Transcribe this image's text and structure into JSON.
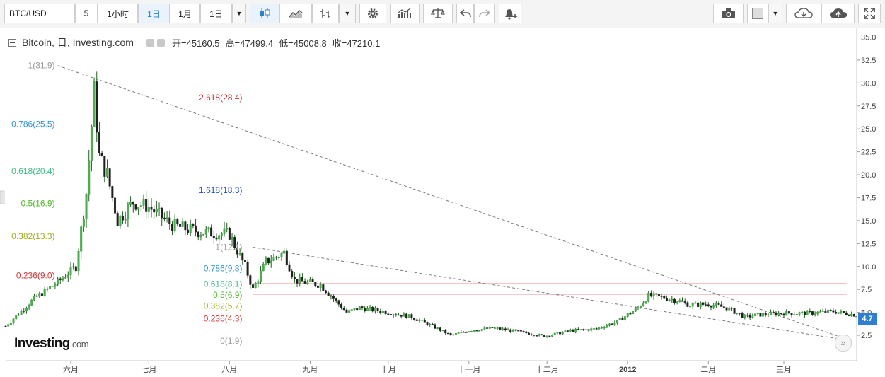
{
  "toolbar": {
    "symbol": "BTC/USD",
    "interval_value": "5",
    "buttons": [
      "1小时",
      "1日",
      "1月",
      "1日"
    ],
    "active_index": 1
  },
  "legend": {
    "title": "Bitcoin, 日, Investing.com",
    "open": "开=45160.5",
    "high": "高=47499.4",
    "low": "低=45008.8",
    "close": "收=47210.1"
  },
  "logo": {
    "brand": "Investing",
    "suffix": ".com"
  },
  "last_price_label": "4.7",
  "forward_button": "»",
  "chart_data": {
    "type": "candlestick",
    "ylim": [
      1.5,
      35.5
    ],
    "y_ticks": [
      "2.5",
      "5.0",
      "7.5",
      "10.0",
      "12.5",
      "15.0",
      "17.5",
      "20.0",
      "22.5",
      "25.0",
      "27.5",
      "30.0",
      "32.5",
      "35.0"
    ],
    "x_ticks": [
      "六月",
      "七月",
      "八月",
      "九月",
      "十月",
      "十一月",
      "十二月",
      "2012",
      "二月",
      "三月"
    ],
    "x_tick_dates": [
      "2011-06-01",
      "2011-07-01",
      "2011-08-01",
      "2011-09-01",
      "2011-10-01",
      "2011-11-01",
      "2011-12-01",
      "2012-01-01",
      "2012-02-01",
      "2012-03-01"
    ],
    "x_range": [
      "2011-05-07",
      "2012-03-29"
    ],
    "last_value": 4.7,
    "fib_sets": [
      {
        "x_start": "2011-05-27",
        "x_end": "2011-08-07",
        "levels": [
          {
            "label": "1(31.9)",
            "value": 31.9,
            "color": "#9a9a9a"
          },
          {
            "label": "0.786(25.5)",
            "value": 25.5,
            "color": "#2f94d6"
          },
          {
            "label": "0.618(20.4)",
            "value": 20.4,
            "color": "#3fbf86"
          },
          {
            "label": "0.5(16.9)",
            "value": 16.9,
            "color": "#52b82b"
          },
          {
            "label": "0.382(13.3)",
            "value": 13.3,
            "color": "#9fb320"
          },
          {
            "label": "0.236(9.0)",
            "value": 9.0,
            "color": "#d63a3a"
          }
        ],
        "fills": [
          "#dedede",
          "#cde6f4",
          "#d2f1e1",
          "#e1f5d2",
          "#f0f6d6",
          "#f8d4d4"
        ]
      },
      {
        "x_start": "2011-08-07",
        "x_end": "2012-03-27",
        "levels": [
          {
            "label": "2.618(28.4)",
            "value": 28.4,
            "color": "#c93232"
          },
          {
            "label": "1.618(18.3)",
            "value": 18.3,
            "color": "#2b4fc2"
          },
          {
            "label": "1(12.1)",
            "value": 12.1,
            "color": "#9a9a9a"
          },
          {
            "label": "0.786(9.8)",
            "value": 9.8,
            "color": "#2f94d6"
          },
          {
            "label": "0.618(8.1)",
            "value": 8.1,
            "color": "#3fbf86"
          },
          {
            "label": "0.5(6.9)",
            "value": 6.9,
            "color": "#52b82b"
          },
          {
            "label": "0.382(5.7)",
            "value": 5.7,
            "color": "#9fb320"
          },
          {
            "label": "0.236(4.3)",
            "value": 4.3,
            "color": "#d63a3a"
          },
          {
            "label": "0(1.9)",
            "value": 1.9,
            "color": "#9a9a9a"
          }
        ],
        "fills": [
          "#c6b1e8",
          "#d4bcdc",
          "#d4bfd1",
          "#bcc3dc",
          "#bcbfc9",
          "#cfd0d6",
          "#d8dbd0",
          "#d6d9c4",
          "#e3e4c2",
          "#e9dfc4",
          "#ebb0b0"
        ]
      }
    ],
    "horizontal_lines": [
      {
        "value": 8.1,
        "x_start": "2011-08-10",
        "color": "#d02020"
      },
      {
        "value": 7.0,
        "x_start": "2011-08-10",
        "color": "#d02020"
      }
    ],
    "trend_lines": [
      {
        "from": [
          "2011-05-27",
          31.9
        ],
        "to": [
          "2012-03-27",
          1.9
        ]
      },
      {
        "from": [
          "2011-08-10",
          12.1
        ],
        "to": [
          "2012-03-27",
          1.9
        ]
      }
    ],
    "anchors": [
      {
        "date": "2011-05-07",
        "price": 3.5
      },
      {
        "date": "2011-05-18",
        "price": 6.5
      },
      {
        "date": "2011-05-27",
        "price": 8.3
      },
      {
        "date": "2011-06-03",
        "price": 10.0
      },
      {
        "date": "2011-06-07",
        "price": 18.0
      },
      {
        "date": "2011-06-10",
        "price": 29.0
      },
      {
        "date": "2011-06-12",
        "price": 22.0
      },
      {
        "date": "2011-06-15",
        "price": 20.0
      },
      {
        "date": "2011-06-19",
        "price": 15.0
      },
      {
        "date": "2011-06-25",
        "price": 17.0
      },
      {
        "date": "2011-07-01",
        "price": 16.5
      },
      {
        "date": "2011-07-10",
        "price": 14.5
      },
      {
        "date": "2011-07-20",
        "price": 13.8
      },
      {
        "date": "2011-08-01",
        "price": 13.5
      },
      {
        "date": "2011-08-07",
        "price": 10.0
      },
      {
        "date": "2011-08-10",
        "price": 7.5
      },
      {
        "date": "2011-08-15",
        "price": 10.5
      },
      {
        "date": "2011-08-22",
        "price": 11.5
      },
      {
        "date": "2011-08-26",
        "price": 8.5
      },
      {
        "date": "2011-09-05",
        "price": 8.0
      },
      {
        "date": "2011-09-10",
        "price": 6.5
      },
      {
        "date": "2011-09-15",
        "price": 5.0
      },
      {
        "date": "2011-09-20",
        "price": 5.5
      },
      {
        "date": "2011-10-01",
        "price": 5.0
      },
      {
        "date": "2011-10-10",
        "price": 4.5
      },
      {
        "date": "2011-10-18",
        "price": 3.5
      },
      {
        "date": "2011-10-25",
        "price": 2.5
      },
      {
        "date": "2011-11-01",
        "price": 3.0
      },
      {
        "date": "2011-11-10",
        "price": 3.3
      },
      {
        "date": "2011-11-20",
        "price": 2.9
      },
      {
        "date": "2011-11-30",
        "price": 2.4
      },
      {
        "date": "2011-12-10",
        "price": 3.0
      },
      {
        "date": "2011-12-20",
        "price": 3.2
      },
      {
        "date": "2011-12-28",
        "price": 4.0
      },
      {
        "date": "2012-01-05",
        "price": 5.5
      },
      {
        "date": "2012-01-09",
        "price": 6.8
      },
      {
        "date": "2012-01-15",
        "price": 6.6
      },
      {
        "date": "2012-01-20",
        "price": 6.3
      },
      {
        "date": "2012-01-25",
        "price": 5.8
      },
      {
        "date": "2012-02-01",
        "price": 5.9
      },
      {
        "date": "2012-02-08",
        "price": 5.5
      },
      {
        "date": "2012-02-15",
        "price": 4.5
      },
      {
        "date": "2012-02-22",
        "price": 4.8
      },
      {
        "date": "2012-03-01",
        "price": 4.9
      },
      {
        "date": "2012-03-10",
        "price": 4.9
      },
      {
        "date": "2012-03-20",
        "price": 5.1
      },
      {
        "date": "2012-03-29",
        "price": 4.7
      }
    ]
  }
}
